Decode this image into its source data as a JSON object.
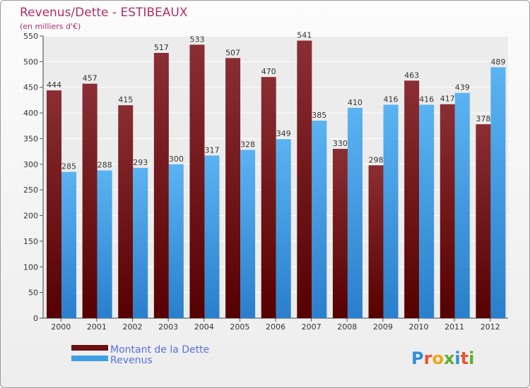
{
  "chart_data": {
    "type": "bar",
    "title": "Revenus/Dette - ESTIBEAUX",
    "subtitle": "(en milliers d'€)",
    "categories": [
      "2000",
      "2001",
      "2002",
      "2003",
      "2004",
      "2005",
      "2006",
      "2007",
      "2008",
      "2009",
      "2010",
      "2011",
      "2012"
    ],
    "series": [
      {
        "name": "Montant de la Dette",
        "values": [
          444,
          457,
          415,
          517,
          533,
          507,
          470,
          541,
          330,
          298,
          463,
          417,
          378
        ],
        "color": "#7a1010"
      },
      {
        "name": "Revenus",
        "values": [
          285,
          288,
          293,
          300,
          317,
          328,
          349,
          385,
          410,
          416,
          416,
          439,
          489
        ],
        "color": "#3f9fe6"
      }
    ],
    "ylim": [
      0,
      550
    ],
    "yticks": [
      0,
      50,
      100,
      150,
      200,
      250,
      300,
      350,
      400,
      450,
      500,
      550
    ],
    "grid": true,
    "legend_position": "bottom-left"
  },
  "logo": {
    "text": "Proxiti"
  }
}
